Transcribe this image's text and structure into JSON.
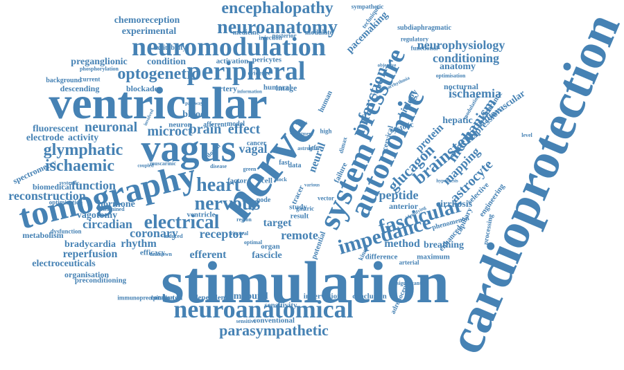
{
  "colors": {
    "word": "#4682b4",
    "background": "#ffffff"
  },
  "words": [
    {
      "t": "stimulation",
      "s": 86
    },
    {
      "t": "cardioprotection",
      "s": 74
    },
    {
      "t": "nerve",
      "s": 72
    },
    {
      "t": "ventricular",
      "s": 66
    },
    {
      "t": "vagus",
      "s": 56
    },
    {
      "t": "tomography",
      "s": 50
    },
    {
      "t": "system",
      "s": 46
    },
    {
      "t": "autonomic",
      "s": 44
    },
    {
      "t": "pressure",
      "s": 38
    },
    {
      "t": "peripheral",
      "s": 38
    },
    {
      "t": "neuromodulation",
      "s": 38
    },
    {
      "t": "neuroanatomical",
      "s": 36
    },
    {
      "t": "fascicular",
      "s": 30
    },
    {
      "t": "impedance",
      "s": 30
    },
    {
      "t": "neuroanatomy",
      "s": 28
    },
    {
      "t": "nervous",
      "s": 28
    },
    {
      "t": "heart",
      "s": 28
    },
    {
      "t": "electrical",
      "s": 28
    },
    {
      "t": "brainstem",
      "s": 26
    },
    {
      "t": "encephalopathy",
      "s": 24
    },
    {
      "t": "optogenetic",
      "s": 24
    },
    {
      "t": "ischaemic",
      "s": 24
    },
    {
      "t": "glymphatic",
      "s": 24
    },
    {
      "t": "infarction",
      "s": 24
    },
    {
      "t": "mechanism",
      "s": 22
    },
    {
      "t": "glucagon",
      "s": 22
    },
    {
      "t": "parasympathetic",
      "s": 22
    },
    {
      "t": "effect",
      "s": 20
    },
    {
      "t": "brain",
      "s": 20
    },
    {
      "t": "microct",
      "s": 20
    },
    {
      "t": "neuronal",
      "s": 20
    },
    {
      "t": "astrocyte",
      "s": 20
    },
    {
      "t": "ischaemia",
      "s": 18
    },
    {
      "t": "conditioning",
      "s": 18
    },
    {
      "t": "neurophysiology",
      "s": 18
    },
    {
      "t": "reconstruction",
      "s": 18
    },
    {
      "t": "function",
      "s": 18
    },
    {
      "t": "circadian",
      "s": 18
    },
    {
      "t": "receptor",
      "s": 18
    },
    {
      "t": "peptide",
      "s": 18
    },
    {
      "t": "coronary",
      "s": 18
    },
    {
      "t": "vagal",
      "s": 18
    },
    {
      "t": "remote",
      "s": 18
    },
    {
      "t": "mapping",
      "s": 18
    },
    {
      "t": "protein",
      "s": 16
    },
    {
      "t": "reperfusion",
      "s": 16
    },
    {
      "t": "rhythm",
      "s": 16
    },
    {
      "t": "neural",
      "s": 16
    },
    {
      "t": "target",
      "s": 16
    },
    {
      "t": "efferent",
      "s": 16
    },
    {
      "t": "method",
      "s": 16
    },
    {
      "t": "pacemaking",
      "s": 15
    },
    {
      "t": "chemoreception",
      "s": 14
    },
    {
      "t": "experimental",
      "s": 14
    },
    {
      "t": "preganglionic",
      "s": 14
    },
    {
      "t": "condition",
      "s": 14
    },
    {
      "t": "fluorescent",
      "s": 14
    },
    {
      "t": "electrode",
      "s": 14
    },
    {
      "t": "activity",
      "s": 14
    },
    {
      "t": "hormone",
      "s": 14
    },
    {
      "t": "bradycardia",
      "s": 14
    },
    {
      "t": "electroceuticals",
      "s": 14
    },
    {
      "t": "vagotomy",
      "s": 14
    },
    {
      "t": "fascicle",
      "s": 14
    },
    {
      "t": "expression",
      "s": 14
    },
    {
      "t": "cardiovascular",
      "s": 14
    },
    {
      "t": "hepatic",
      "s": 14
    },
    {
      "t": "anatomy",
      "s": 14
    },
    {
      "t": "biology",
      "s": 14
    },
    {
      "t": "blood",
      "s": 14
    },
    {
      "t": "breathing",
      "s": 14
    },
    {
      "t": "compound",
      "s": 14
    },
    {
      "t": "cirrhosis",
      "s": 14
    },
    {
      "t": "anterior",
      "s": 12
    },
    {
      "t": "descending",
      "s": 12
    },
    {
      "t": "blockade",
      "s": 12
    },
    {
      "t": "artery",
      "s": 12
    },
    {
      "t": "image",
      "s": 12
    },
    {
      "t": "nocturnal",
      "s": 12
    },
    {
      "t": "spectrometry",
      "s": 12
    },
    {
      "t": "biomedical",
      "s": 12
    },
    {
      "t": "metabolism",
      "s": 12
    },
    {
      "t": "organisation",
      "s": 12
    },
    {
      "t": "preconditioning",
      "s": 11
    },
    {
      "t": "computed",
      "s": 11
    },
    {
      "t": "dependent",
      "s": 11
    },
    {
      "t": "innervation",
      "s": 11
    },
    {
      "t": "conclusion",
      "s": 11
    },
    {
      "t": "sensitivity",
      "s": 11
    },
    {
      "t": "conventional",
      "s": 11
    },
    {
      "t": "difference",
      "s": 11
    },
    {
      "t": "maximum",
      "s": 11
    },
    {
      "t": "potential",
      "s": 11
    },
    {
      "t": "failure",
      "s": 11
    },
    {
      "t": "tracer",
      "s": 11
    },
    {
      "t": "cell",
      "s": 11
    },
    {
      "t": "factor",
      "s": 11
    },
    {
      "t": "study",
      "s": 11
    },
    {
      "t": "result",
      "s": 11
    },
    {
      "t": "organ",
      "s": 11
    },
    {
      "t": "efficacy",
      "s": 11
    },
    {
      "t": "cervical",
      "s": 11
    },
    {
      "t": "systolic",
      "s": 11
    },
    {
      "t": "human",
      "s": 11
    },
    {
      "t": "enhanced",
      "s": 11
    },
    {
      "t": "capillary",
      "s": 11
    },
    {
      "t": "engineering",
      "s": 11
    },
    {
      "t": "selective",
      "s": 11
    },
    {
      "t": "clearance",
      "s": 11
    },
    {
      "t": "ventricle",
      "s": 11
    },
    {
      "t": "phenomenon",
      "s": 10
    },
    {
      "t": "processing",
      "s": 10
    },
    {
      "t": "adrenoceptor",
      "s": 10
    },
    {
      "t": "immunoprecipitation",
      "s": 9
    },
    {
      "t": "dysfunction",
      "s": 9
    },
    {
      "t": "optimization",
      "s": 9
    },
    {
      "t": "background",
      "s": 10
    },
    {
      "t": "pericytes",
      "s": 11
    },
    {
      "t": "activation",
      "s": 11
    },
    {
      "t": "modulate",
      "s": 10
    },
    {
      "t": "medicine",
      "s": 10
    },
    {
      "t": "excitability",
      "s": 10
    },
    {
      "t": "subdiaphragmatic",
      "s": 10
    },
    {
      "t": "regulatory",
      "s": 9
    },
    {
      "t": "functional",
      "s": 9
    },
    {
      "t": "sympathetic",
      "s": 9
    },
    {
      "t": "technique",
      "s": 9
    },
    {
      "t": "injection",
      "s": 9
    },
    {
      "t": "posterior",
      "s": 9
    },
    {
      "t": "evidence",
      "s": 9
    },
    {
      "t": "current",
      "s": 9
    },
    {
      "t": "humoral",
      "s": 11
    },
    {
      "t": "neuron",
      "s": 11
    },
    {
      "t": "afferent",
      "s": 10
    },
    {
      "t": "model",
      "s": 10
    },
    {
      "t": "cancer",
      "s": 10
    },
    {
      "t": "fast",
      "s": 10
    },
    {
      "t": "data",
      "s": 10
    },
    {
      "t": "node",
      "s": 10
    },
    {
      "t": "vector",
      "s": 9
    },
    {
      "t": "dimax",
      "s": 9
    },
    {
      "t": "kinase",
      "s": 9
    },
    {
      "t": "arterial",
      "s": 9
    },
    {
      "t": "significant",
      "s": 8
    },
    {
      "t": "determined",
      "s": 8
    },
    {
      "t": "systemic",
      "s": 8
    },
    {
      "t": "muscarinic",
      "s": 8
    },
    {
      "t": "disease",
      "s": 8
    },
    {
      "t": "region",
      "s": 8
    },
    {
      "t": "visceral",
      "s": 8
    },
    {
      "t": "optimal",
      "s": 8
    },
    {
      "t": "induced",
      "s": 8
    },
    {
      "t": "unknown",
      "s": 8
    },
    {
      "t": "sensitive",
      "s": 8
    },
    {
      "t": "phosphorylation",
      "s": 8
    },
    {
      "t": "information",
      "s": 7
    },
    {
      "t": "pathway",
      "s": 7
    },
    {
      "t": "treatment",
      "s": 7
    },
    {
      "t": "rate",
      "s": 8
    },
    {
      "t": "mass",
      "s": 8
    },
    {
      "t": "green",
      "s": 8
    },
    {
      "t": "clock",
      "s": 8
    },
    {
      "t": "level",
      "s": 8
    },
    {
      "t": "optimisation",
      "s": 8
    },
    {
      "t": "modulation",
      "s": 8
    },
    {
      "t": "identifying",
      "s": 7
    },
    {
      "t": "hypothesis",
      "s": 7
    },
    {
      "t": "objective",
      "s": 7
    },
    {
      "t": "arrhythmia",
      "s": 7
    },
    {
      "t": "astroglial",
      "s": 8
    },
    {
      "t": "left",
      "s": 10
    },
    {
      "t": "high",
      "s": 9
    },
    {
      "t": "dorsal",
      "s": 9
    },
    {
      "t": "gastric",
      "s": 9
    },
    {
      "t": "involved",
      "s": 7
    },
    {
      "t": "coupled",
      "s": 7
    },
    {
      "t": "various",
      "s": 7
    }
  ]
}
